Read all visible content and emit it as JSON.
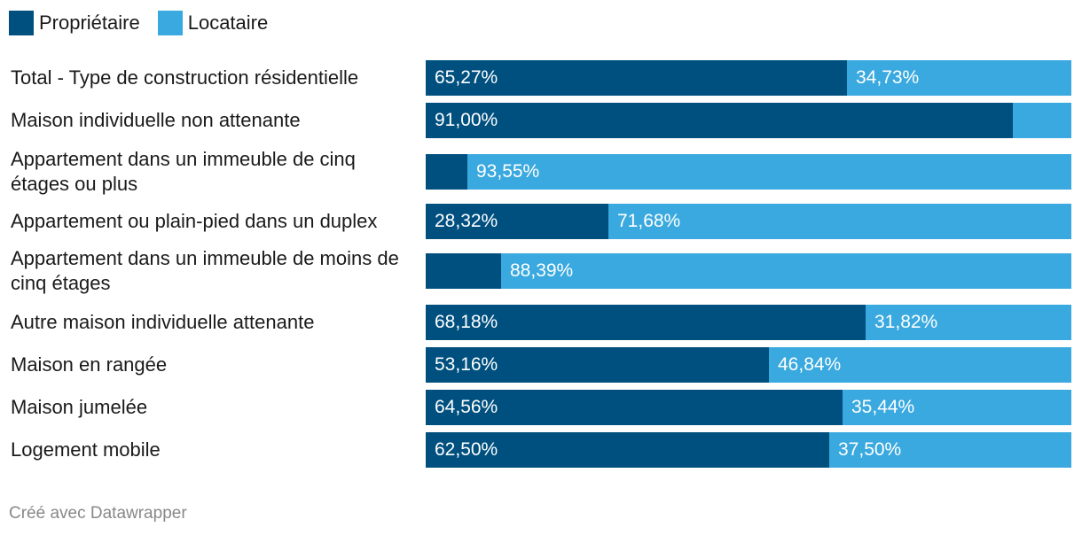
{
  "legend": {
    "owner_label": "Propriétaire",
    "renter_label": "Locataire"
  },
  "colors": {
    "owner": "#00507f",
    "renter": "#3aa9df",
    "text": "#1a1a1a",
    "footer": "#888888"
  },
  "chart_data": {
    "type": "bar",
    "orientation": "horizontal",
    "stacked": true,
    "title": "",
    "xlabel": "",
    "ylabel": "",
    "xlim": [
      0,
      100
    ],
    "value_unit": "%",
    "categories": [
      "Total - Type de construction résidentielle",
      "Maison individuelle non attenante",
      "Appartement dans un immeuble de cinq étages ou plus",
      "Appartement ou plain-pied dans un duplex",
      "Appartement dans un immeuble de moins de cinq étages",
      "Autre maison individuelle attenante",
      "Maison en rangée",
      "Maison jumelée",
      "Logement mobile"
    ],
    "series": [
      {
        "name": "Propriétaire",
        "values": [
          65.27,
          91.0,
          6.45,
          28.32,
          11.61,
          68.18,
          53.16,
          64.56,
          62.5
        ],
        "labels": [
          "65,27%",
          "91,00%",
          "",
          "28,32%",
          "",
          "68,18%",
          "53,16%",
          "64,56%",
          "62,50%"
        ]
      },
      {
        "name": "Locataire",
        "values": [
          34.73,
          9.0,
          93.55,
          71.68,
          88.39,
          31.82,
          46.84,
          35.44,
          37.5
        ],
        "labels": [
          "34,73%",
          "",
          "93,55%",
          "71,68%",
          "88,39%",
          "31,82%",
          "46,84%",
          "35,44%",
          "37,50%"
        ]
      }
    ]
  },
  "footer": {
    "credit": "Créé avec Datawrapper"
  }
}
